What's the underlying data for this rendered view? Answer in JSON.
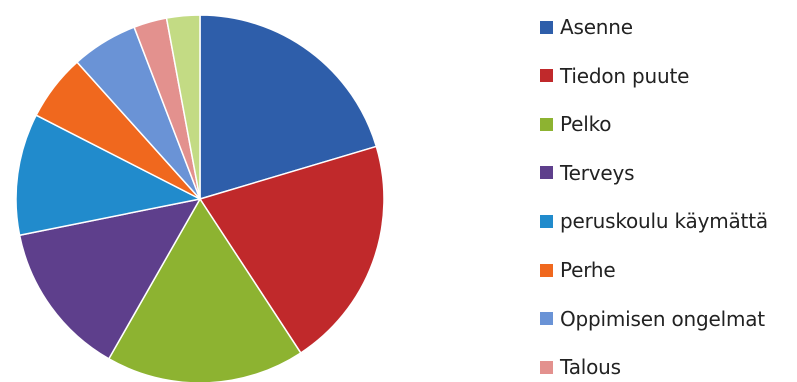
{
  "chart_data": {
    "type": "pie",
    "title": "",
    "legend_position": "right",
    "start_angle": "top",
    "direction": "clockwise",
    "slices": [
      {
        "label": "Asenne",
        "value": 21,
        "color": "#2E5EAA"
      },
      {
        "label": "Tiedon puute",
        "value": 21,
        "color": "#C0292B"
      },
      {
        "label": "Pelko",
        "value": 18,
        "color": "#8DB331"
      },
      {
        "label": "Terveys",
        "value": 14,
        "color": "#5E3F8C"
      },
      {
        "label": "peruskoulu käymättä",
        "value": 11,
        "color": "#218BCC"
      },
      {
        "label": "Perhe",
        "value": 6,
        "color": "#F0681E"
      },
      {
        "label": "Oppimisen ongelmat",
        "value": 6,
        "color": "#6A93D6"
      },
      {
        "label": "Talous",
        "value": 3,
        "color": "#E3918E"
      },
      {
        "label": "",
        "value": 3,
        "color": "#C3DB84"
      }
    ]
  }
}
